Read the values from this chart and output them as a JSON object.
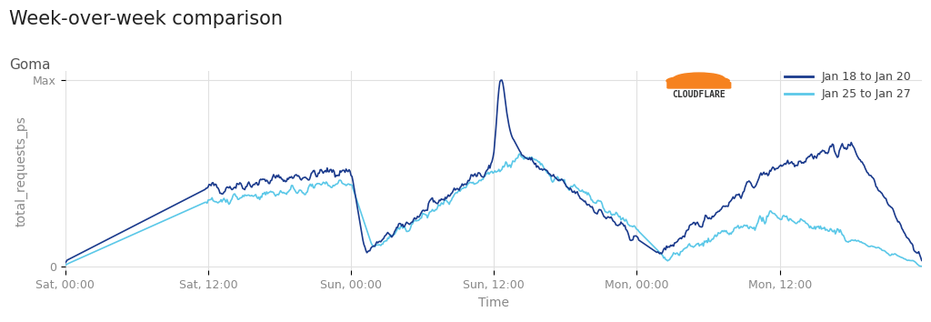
{
  "title": "Week-over-week comparison",
  "subtitle": "Goma",
  "xlabel": "Time",
  "ylabel": "total_requests_ps",
  "x_tick_labels": [
    "Sat, 00:00",
    "Sat, 12:00",
    "Sun, 00:00",
    "Sun, 12:00",
    "Mon, 00:00",
    "Mon, 12:00"
  ],
  "y_tick_labels": [
    "0",
    "Max"
  ],
  "line1_color": "#1a3a8c",
  "line2_color": "#5bc8e8",
  "legend1": "Jan 18 to Jan 20",
  "legend2": "Jan 25 to Jan 27",
  "background_color": "#ffffff",
  "grid_color": "#e0e0e0",
  "title_fontsize": 15,
  "subtitle_fontsize": 11,
  "axis_label_fontsize": 10,
  "tick_fontsize": 9
}
